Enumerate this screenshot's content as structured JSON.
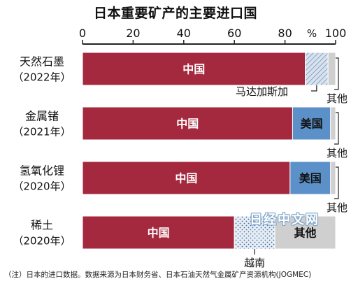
{
  "watermark": "日经中文网",
  "chart_data": {
    "type": "bar",
    "orientation": "horizontal",
    "stacked": true,
    "title": "日本重要矿产的主要进口国",
    "note": "（注）日本的进口数据。数据来源为日本财务省、日本石油天然气金属矿产资源机构(JOGMEC)",
    "xlim": [
      0,
      100
    ],
    "x_ticks": [
      0,
      20,
      40,
      60,
      80,
      100
    ],
    "x_unit": "%",
    "colors": {
      "china": "#a4283e",
      "usa": "#5b91c8",
      "madagascar": "hatch",
      "vietnam": "dots",
      "other": "#cfcfcf"
    },
    "categories": [
      {
        "name": "天然石墨",
        "year": "（2022年）"
      },
      {
        "name": "金属锗",
        "year": "（2021年）"
      },
      {
        "name": "氢氧化锂",
        "year": "（2020年）"
      },
      {
        "name": "稀土",
        "year": "（2020年）"
      }
    ],
    "series": [
      {
        "name": "中国",
        "key": "china",
        "values": [
          88,
          83,
          82,
          60
        ],
        "labels": [
          "中国",
          "中国",
          "中国",
          "中国"
        ]
      },
      {
        "name": "美国",
        "key": "usa",
        "values": [
          0,
          15,
          16,
          0
        ],
        "labels": [
          "",
          "美国",
          "美国",
          ""
        ]
      },
      {
        "name": "马达加斯加",
        "key": "madagascar",
        "values": [
          9,
          0,
          0,
          0
        ],
        "labels": [
          "",
          "",
          "",
          ""
        ]
      },
      {
        "name": "越南",
        "key": "vietnam",
        "values": [
          0,
          0,
          0,
          16
        ],
        "labels": [
          "",
          "",
          "",
          ""
        ]
      },
      {
        "name": "其他",
        "key": "other",
        "values": [
          3,
          2,
          2,
          24
        ],
        "labels": [
          "",
          "",
          "",
          "其他"
        ]
      }
    ],
    "callouts": [
      {
        "category_index": 0,
        "text": "马达加斯加"
      },
      {
        "category_index": 0,
        "text": "其他"
      },
      {
        "category_index": 1,
        "text": "其他"
      },
      {
        "category_index": 2,
        "text": "其他"
      },
      {
        "category_index": 3,
        "text": "越南"
      }
    ]
  }
}
